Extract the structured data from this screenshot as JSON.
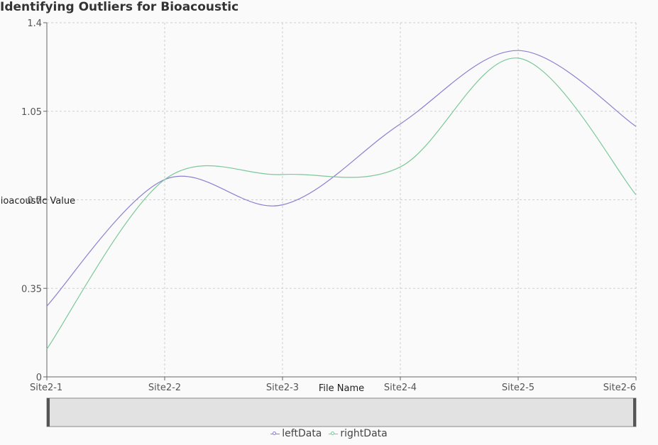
{
  "chart_data": {
    "type": "line",
    "title": "Identifying Outliers for Bioacoustic",
    "xlabel": "File Name",
    "ylabel": "Bioacoustic Value",
    "categories": [
      "Site2-1",
      "Site2-2",
      "Site2-3",
      "Site2-4",
      "Site2-5",
      "Site2-6"
    ],
    "ylim": [
      0,
      1.4
    ],
    "yticks": [
      0,
      0.35,
      0.7,
      1.05,
      1.4
    ],
    "ytick_labels": [
      "0",
      "0.35",
      "0.7",
      "1.05",
      "1.4"
    ],
    "grid": true,
    "legend_position": "bottom",
    "series": [
      {
        "name": "leftData",
        "color": "#8c7fd0",
        "values": [
          0.28,
          0.78,
          0.68,
          1.0,
          1.29,
          0.99
        ]
      },
      {
        "name": "rightData",
        "color": "#7cc89a",
        "values": [
          0.11,
          0.78,
          0.8,
          0.83,
          1.26,
          0.72
        ]
      }
    ]
  }
}
